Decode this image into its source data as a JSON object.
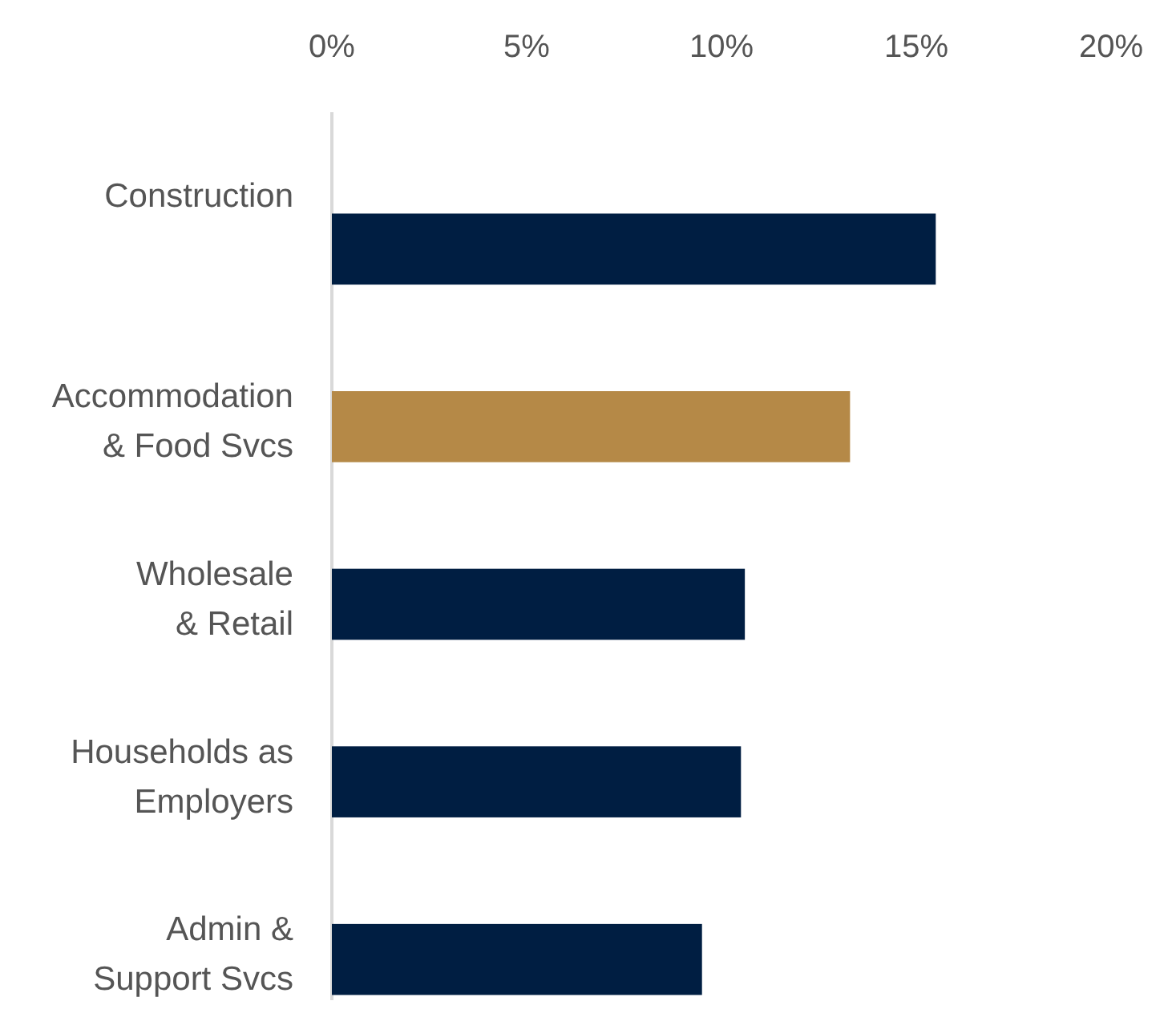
{
  "chart_data": {
    "type": "bar",
    "orientation": "horizontal",
    "categories": [
      "Construction",
      "Accommodation\n& Food Svcs",
      "Wholesale\n& Retail",
      "Households as\nEmployers",
      "Admin &\nSupport Svcs"
    ],
    "values": [
      15.5,
      13.3,
      10.6,
      10.5,
      9.5
    ],
    "colors": [
      "#001e42",
      "#b58947",
      "#001e42",
      "#001e42",
      "#001e42"
    ],
    "xlim": [
      0,
      20
    ],
    "xticks": [
      {
        "value": 0,
        "label": "0%"
      },
      {
        "value": 5,
        "label": "5%"
      },
      {
        "value": 10,
        "label": "10%"
      },
      {
        "value": 15,
        "label": "15%"
      },
      {
        "value": 20,
        "label": "20%"
      }
    ],
    "grid": false
  }
}
